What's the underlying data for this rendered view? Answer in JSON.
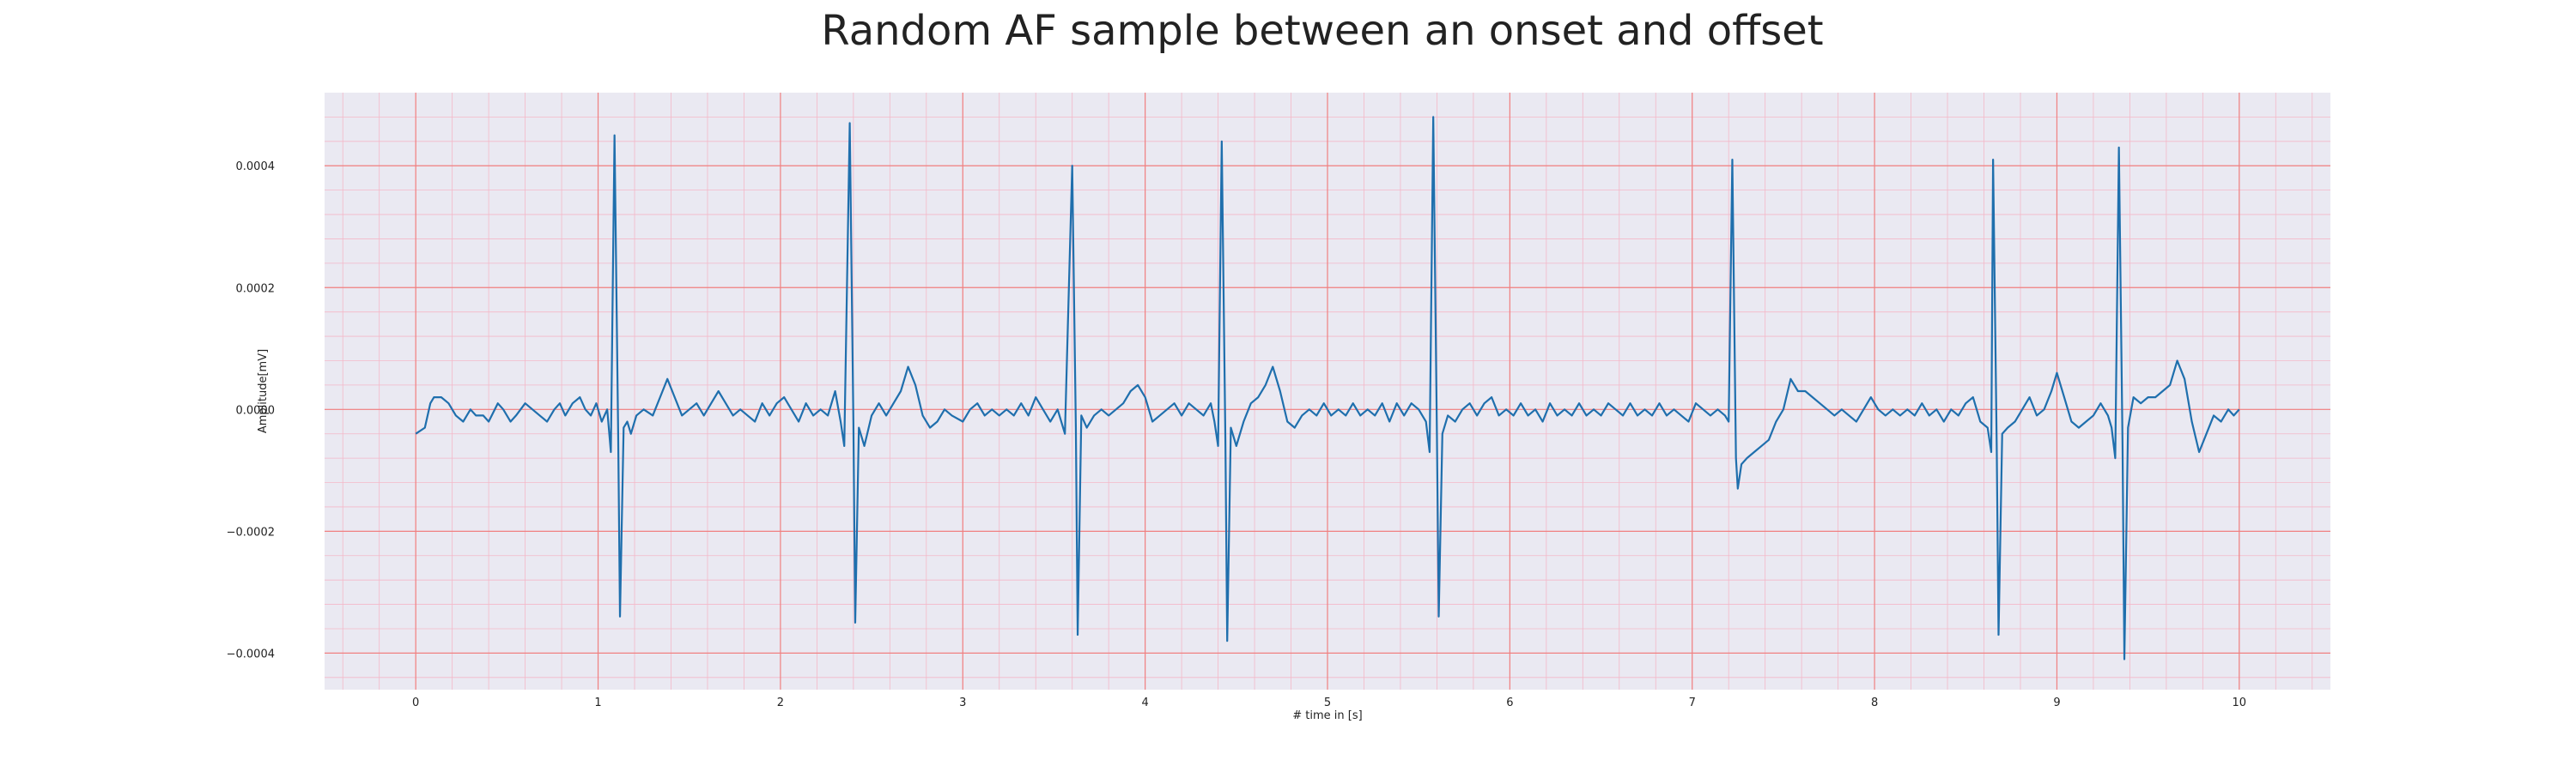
{
  "chart_data": {
    "type": "line",
    "title": "Random AF sample between an onset and offset",
    "xlabel": "# time in [s]",
    "ylabel": "Amplitude[mV]",
    "xlim": [
      -0.5,
      10.5
    ],
    "ylim": [
      -0.00046,
      0.00052
    ],
    "xticks": [
      0,
      1,
      2,
      3,
      4,
      5,
      6,
      7,
      8,
      9,
      10
    ],
    "xtick_labels": [
      "0",
      "1",
      "2",
      "3",
      "4",
      "5",
      "6",
      "7",
      "8",
      "9",
      "10"
    ],
    "yticks": [
      -0.0004,
      -0.0002,
      0.0,
      0.0002,
      0.0004
    ],
    "ytick_labels": [
      "−0.0004",
      "−0.0002",
      "0.0000",
      "0.0002",
      "0.0004"
    ],
    "grid": true,
    "background_color": "#eae9f2",
    "major_grid_color": "#f08080",
    "minor_grid_color": "#f4b8c8",
    "line_color": "#1f6fad",
    "series": [
      {
        "points": [
          [
            0.0,
            -4e-05
          ],
          [
            0.05,
            -3e-05
          ],
          [
            0.08,
            1e-05
          ],
          [
            0.1,
            2e-05
          ],
          [
            0.14,
            2e-05
          ],
          [
            0.18,
            1e-05
          ],
          [
            0.22,
            -1e-05
          ],
          [
            0.26,
            -2e-05
          ],
          [
            0.3,
            0.0
          ],
          [
            0.33,
            -1e-05
          ],
          [
            0.37,
            -1e-05
          ],
          [
            0.4,
            -2e-05
          ],
          [
            0.45,
            1e-05
          ],
          [
            0.48,
            0.0
          ],
          [
            0.5,
            -1e-05
          ],
          [
            0.52,
            -2e-05
          ],
          [
            0.55,
            -1e-05
          ],
          [
            0.6,
            1e-05
          ],
          [
            0.64,
            0.0
          ],
          [
            0.68,
            -1e-05
          ],
          [
            0.72,
            -2e-05
          ],
          [
            0.76,
            0.0
          ],
          [
            0.79,
            1e-05
          ],
          [
            0.82,
            -1e-05
          ],
          [
            0.86,
            1e-05
          ],
          [
            0.9,
            2e-05
          ],
          [
            0.93,
            0.0
          ],
          [
            0.96,
            -1e-05
          ],
          [
            0.99,
            1e-05
          ],
          [
            1.02,
            -2e-05
          ],
          [
            1.05,
            0.0
          ],
          [
            1.07,
            -7e-05
          ],
          [
            1.09,
            0.00045
          ],
          [
            1.11,
            -4e-05
          ],
          [
            1.12,
            -0.00034
          ],
          [
            1.14,
            -3e-05
          ],
          [
            1.16,
            -2e-05
          ],
          [
            1.18,
            -4e-05
          ],
          [
            1.21,
            -1e-05
          ],
          [
            1.25,
            0.0
          ],
          [
            1.3,
            -1e-05
          ],
          [
            1.34,
            2e-05
          ],
          [
            1.38,
            5e-05
          ],
          [
            1.42,
            2e-05
          ],
          [
            1.46,
            -1e-05
          ],
          [
            1.5,
            0.0
          ],
          [
            1.54,
            1e-05
          ],
          [
            1.58,
            -1e-05
          ],
          [
            1.62,
            1e-05
          ],
          [
            1.66,
            3e-05
          ],
          [
            1.7,
            1e-05
          ],
          [
            1.74,
            -1e-05
          ],
          [
            1.78,
            0.0
          ],
          [
            1.82,
            -1e-05
          ],
          [
            1.86,
            -2e-05
          ],
          [
            1.9,
            1e-05
          ],
          [
            1.94,
            -1e-05
          ],
          [
            1.98,
            1e-05
          ],
          [
            2.02,
            2e-05
          ],
          [
            2.06,
            0.0
          ],
          [
            2.1,
            -2e-05
          ],
          [
            2.14,
            1e-05
          ],
          [
            2.18,
            -1e-05
          ],
          [
            2.22,
            0.0
          ],
          [
            2.26,
            -1e-05
          ],
          [
            2.3,
            3e-05
          ],
          [
            2.33,
            -2e-05
          ],
          [
            2.35,
            -6e-05
          ],
          [
            2.38,
            0.00047
          ],
          [
            2.4,
            -2e-05
          ],
          [
            2.41,
            -0.00035
          ],
          [
            2.43,
            -3e-05
          ],
          [
            2.46,
            -6e-05
          ],
          [
            2.5,
            -1e-05
          ],
          [
            2.54,
            1e-05
          ],
          [
            2.58,
            -1e-05
          ],
          [
            2.62,
            1e-05
          ],
          [
            2.66,
            3e-05
          ],
          [
            2.7,
            7e-05
          ],
          [
            2.74,
            4e-05
          ],
          [
            2.78,
            -1e-05
          ],
          [
            2.82,
            -3e-05
          ],
          [
            2.86,
            -2e-05
          ],
          [
            2.9,
            0.0
          ],
          [
            2.94,
            -1e-05
          ],
          [
            3.0,
            -2e-05
          ],
          [
            3.04,
            0.0
          ],
          [
            3.08,
            1e-05
          ],
          [
            3.12,
            -1e-05
          ],
          [
            3.16,
            0.0
          ],
          [
            3.2,
            -1e-05
          ],
          [
            3.24,
            0.0
          ],
          [
            3.28,
            -1e-05
          ],
          [
            3.32,
            1e-05
          ],
          [
            3.36,
            -1e-05
          ],
          [
            3.4,
            2e-05
          ],
          [
            3.44,
            0.0
          ],
          [
            3.48,
            -2e-05
          ],
          [
            3.52,
            0.0
          ],
          [
            3.56,
            -4e-05
          ],
          [
            3.6,
            0.0004
          ],
          [
            3.62,
            -3e-05
          ],
          [
            3.63,
            -0.00037
          ],
          [
            3.65,
            -1e-05
          ],
          [
            3.68,
            -3e-05
          ],
          [
            3.72,
            -1e-05
          ],
          [
            3.76,
            0.0
          ],
          [
            3.8,
            -1e-05
          ],
          [
            3.84,
            0.0
          ],
          [
            3.88,
            1e-05
          ],
          [
            3.92,
            3e-05
          ],
          [
            3.96,
            4e-05
          ],
          [
            4.0,
            2e-05
          ],
          [
            4.04,
            -2e-05
          ],
          [
            4.08,
            -1e-05
          ],
          [
            4.12,
            0.0
          ],
          [
            4.16,
            1e-05
          ],
          [
            4.2,
            -1e-05
          ],
          [
            4.24,
            1e-05
          ],
          [
            4.28,
            0.0
          ],
          [
            4.32,
            -1e-05
          ],
          [
            4.36,
            1e-05
          ],
          [
            4.38,
            -2e-05
          ],
          [
            4.4,
            -6e-05
          ],
          [
            4.42,
            0.00044
          ],
          [
            4.44,
            -5e-05
          ],
          [
            4.45,
            -0.00038
          ],
          [
            4.47,
            -3e-05
          ],
          [
            4.5,
            -6e-05
          ],
          [
            4.54,
            -2e-05
          ],
          [
            4.58,
            1e-05
          ],
          [
            4.62,
            2e-05
          ],
          [
            4.66,
            4e-05
          ],
          [
            4.7,
            7e-05
          ],
          [
            4.74,
            3e-05
          ],
          [
            4.78,
            -2e-05
          ],
          [
            4.82,
            -3e-05
          ],
          [
            4.86,
            -1e-05
          ],
          [
            4.9,
            0.0
          ],
          [
            4.94,
            -1e-05
          ],
          [
            4.98,
            1e-05
          ],
          [
            5.02,
            -1e-05
          ],
          [
            5.06,
            0.0
          ],
          [
            5.1,
            -1e-05
          ],
          [
            5.14,
            1e-05
          ],
          [
            5.18,
            -1e-05
          ],
          [
            5.22,
            0.0
          ],
          [
            5.26,
            -1e-05
          ],
          [
            5.3,
            1e-05
          ],
          [
            5.34,
            -2e-05
          ],
          [
            5.38,
            1e-05
          ],
          [
            5.42,
            -1e-05
          ],
          [
            5.46,
            1e-05
          ],
          [
            5.5,
            0.0
          ],
          [
            5.54,
            -2e-05
          ],
          [
            5.56,
            -7e-05
          ],
          [
            5.58,
            0.00048
          ],
          [
            5.6,
            -4e-05
          ],
          [
            5.61,
            -0.00034
          ],
          [
            5.63,
            -4e-05
          ],
          [
            5.66,
            -1e-05
          ],
          [
            5.7,
            -2e-05
          ],
          [
            5.74,
            0.0
          ],
          [
            5.78,
            1e-05
          ],
          [
            5.82,
            -1e-05
          ],
          [
            5.86,
            1e-05
          ],
          [
            5.9,
            2e-05
          ],
          [
            5.94,
            -1e-05
          ],
          [
            5.98,
            0.0
          ],
          [
            6.02,
            -1e-05
          ],
          [
            6.06,
            1e-05
          ],
          [
            6.1,
            -1e-05
          ],
          [
            6.14,
            0.0
          ],
          [
            6.18,
            -2e-05
          ],
          [
            6.22,
            1e-05
          ],
          [
            6.26,
            -1e-05
          ],
          [
            6.3,
            0.0
          ],
          [
            6.34,
            -1e-05
          ],
          [
            6.38,
            1e-05
          ],
          [
            6.42,
            -1e-05
          ],
          [
            6.46,
            0.0
          ],
          [
            6.5,
            -1e-05
          ],
          [
            6.54,
            1e-05
          ],
          [
            6.58,
            0.0
          ],
          [
            6.62,
            -1e-05
          ],
          [
            6.66,
            1e-05
          ],
          [
            6.7,
            -1e-05
          ],
          [
            6.74,
            0.0
          ],
          [
            6.78,
            -1e-05
          ],
          [
            6.82,
            1e-05
          ],
          [
            6.86,
            -1e-05
          ],
          [
            6.9,
            0.0
          ],
          [
            6.94,
            -1e-05
          ],
          [
            6.98,
            -2e-05
          ],
          [
            7.02,
            1e-05
          ],
          [
            7.06,
            0.0
          ],
          [
            7.1,
            -1e-05
          ],
          [
            7.14,
            0.0
          ],
          [
            7.18,
            -1e-05
          ],
          [
            7.2,
            -2e-05
          ],
          [
            7.22,
            0.00041
          ],
          [
            7.24,
            -8e-05
          ],
          [
            7.25,
            -0.00013
          ],
          [
            7.27,
            -9e-05
          ],
          [
            7.3,
            -8e-05
          ],
          [
            7.34,
            -7e-05
          ],
          [
            7.38,
            -6e-05
          ],
          [
            7.42,
            -5e-05
          ],
          [
            7.46,
            -2e-05
          ],
          [
            7.5,
            0.0
          ],
          [
            7.54,
            5e-05
          ],
          [
            7.58,
            3e-05
          ],
          [
            7.62,
            3e-05
          ],
          [
            7.66,
            2e-05
          ],
          [
            7.7,
            1e-05
          ],
          [
            7.74,
            0.0
          ],
          [
            7.78,
            -1e-05
          ],
          [
            7.82,
            0.0
          ],
          [
            7.86,
            -1e-05
          ],
          [
            7.9,
            -2e-05
          ],
          [
            7.94,
            0.0
          ],
          [
            7.98,
            2e-05
          ],
          [
            8.02,
            0.0
          ],
          [
            8.06,
            -1e-05
          ],
          [
            8.1,
            0.0
          ],
          [
            8.14,
            -1e-05
          ],
          [
            8.18,
            0.0
          ],
          [
            8.22,
            -1e-05
          ],
          [
            8.26,
            1e-05
          ],
          [
            8.3,
            -1e-05
          ],
          [
            8.34,
            0.0
          ],
          [
            8.38,
            -2e-05
          ],
          [
            8.42,
            0.0
          ],
          [
            8.46,
            -1e-05
          ],
          [
            8.5,
            1e-05
          ],
          [
            8.54,
            2e-05
          ],
          [
            8.58,
            -2e-05
          ],
          [
            8.62,
            -3e-05
          ],
          [
            8.64,
            -7e-05
          ],
          [
            8.65,
            0.00041
          ],
          [
            8.67,
            -6e-05
          ],
          [
            8.68,
            -0.00037
          ],
          [
            8.7,
            -4e-05
          ],
          [
            8.73,
            -3e-05
          ],
          [
            8.77,
            -2e-05
          ],
          [
            8.81,
            0.0
          ],
          [
            8.85,
            2e-05
          ],
          [
            8.89,
            -1e-05
          ],
          [
            8.93,
            0.0
          ],
          [
            8.97,
            3e-05
          ],
          [
            9.0,
            6e-05
          ],
          [
            9.04,
            2e-05
          ],
          [
            9.08,
            -2e-05
          ],
          [
            9.12,
            -3e-05
          ],
          [
            9.16,
            -2e-05
          ],
          [
            9.2,
            -1e-05
          ],
          [
            9.24,
            1e-05
          ],
          [
            9.28,
            -1e-05
          ],
          [
            9.3,
            -3e-05
          ],
          [
            9.32,
            -8e-05
          ],
          [
            9.34,
            0.00043
          ],
          [
            9.36,
            -6e-05
          ],
          [
            9.37,
            -0.00041
          ],
          [
            9.39,
            -3e-05
          ],
          [
            9.42,
            2e-05
          ],
          [
            9.46,
            1e-05
          ],
          [
            9.5,
            2e-05
          ],
          [
            9.54,
            2e-05
          ],
          [
            9.58,
            3e-05
          ],
          [
            9.62,
            4e-05
          ],
          [
            9.66,
            8e-05
          ],
          [
            9.7,
            5e-05
          ],
          [
            9.74,
            -2e-05
          ],
          [
            9.78,
            -7e-05
          ],
          [
            9.82,
            -4e-05
          ],
          [
            9.86,
            -1e-05
          ],
          [
            9.9,
            -2e-05
          ],
          [
            9.94,
            0.0
          ],
          [
            9.97,
            -1e-05
          ],
          [
            10.0,
            0.0
          ]
        ]
      }
    ]
  }
}
